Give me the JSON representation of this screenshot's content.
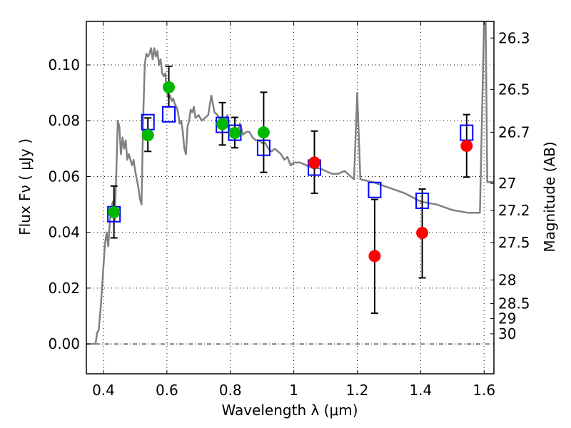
{
  "chart_data": {
    "type": "scatter",
    "title": "",
    "xlabel": "Wavelength  λ (μm)",
    "ylabel": "Flux  Fν  ( μJy )",
    "ylabel_right": "Magnitude (AB)",
    "xlim": [
      0.346,
      1.631
    ],
    "ylim": [
      -0.0107,
      0.1156
    ],
    "grid": true,
    "x_ticks": [
      {
        "value": 0.4,
        "label": "0.4"
      },
      {
        "value": 0.6,
        "label": "0.6"
      },
      {
        "value": 0.8,
        "label": "0.8"
      },
      {
        "value": 1.0,
        "label": "1"
      },
      {
        "value": 1.2,
        "label": "1.2"
      },
      {
        "value": 1.4,
        "label": "1.4"
      },
      {
        "value": 1.6,
        "label": "1.6"
      }
    ],
    "y_ticks": [
      {
        "value": 0.0,
        "label": "0.00"
      },
      {
        "value": 0.02,
        "label": "0.02"
      },
      {
        "value": 0.04,
        "label": "0.04"
      },
      {
        "value": 0.06,
        "label": "0.06"
      },
      {
        "value": 0.08,
        "label": "0.08"
      },
      {
        "value": 0.1,
        "label": "0.10"
      }
    ],
    "right_ticks": [
      {
        "mag": 26.3,
        "label": "26.3"
      },
      {
        "mag": 26.5,
        "label": "26.5"
      },
      {
        "mag": 26.7,
        "label": "26.7"
      },
      {
        "mag": 27,
        "label": "27"
      },
      {
        "mag": 27.2,
        "label": "27.2"
      },
      {
        "mag": 27.5,
        "label": "27.5"
      },
      {
        "mag": 28,
        "label": "28"
      },
      {
        "mag": 28.5,
        "label": "28.5"
      },
      {
        "mag": 29,
        "label": "29"
      },
      {
        "mag": 30,
        "label": "30"
      }
    ],
    "colors": {
      "model": "#808080",
      "model_points": "#0000ff",
      "green_obs": "#00b800",
      "red_obs": "#ff0000",
      "errorbar": "#000000"
    },
    "series": [
      {
        "name": "model_spectrum",
        "kind": "line",
        "x": [
          0.346,
          0.375,
          0.38,
          0.385,
          0.392,
          0.4,
          0.405,
          0.41,
          0.415,
          0.42,
          0.425,
          0.43,
          0.435,
          0.44,
          0.445,
          0.45,
          0.455,
          0.46,
          0.465,
          0.47,
          0.475,
          0.48,
          0.485,
          0.49,
          0.495,
          0.5,
          0.505,
          0.51,
          0.515,
          0.52,
          0.525,
          0.53,
          0.535,
          0.54,
          0.545,
          0.55,
          0.555,
          0.56,
          0.565,
          0.57,
          0.575,
          0.58,
          0.585,
          0.59,
          0.595,
          0.6,
          0.605,
          0.61,
          0.615,
          0.62,
          0.625,
          0.63,
          0.635,
          0.64,
          0.645,
          0.65,
          0.655,
          0.66,
          0.665,
          0.67,
          0.675,
          0.68,
          0.685,
          0.69,
          0.7,
          0.71,
          0.72,
          0.73,
          0.74,
          0.75,
          0.76,
          0.77,
          0.78,
          0.79,
          0.8,
          0.81,
          0.82,
          0.83,
          0.84,
          0.85,
          0.86,
          0.87,
          0.88,
          0.89,
          0.9,
          0.91,
          0.92,
          0.93,
          0.94,
          0.95,
          0.96,
          0.97,
          0.98,
          0.99,
          1.0,
          1.02,
          1.04,
          1.06,
          1.08,
          1.1,
          1.12,
          1.14,
          1.16,
          1.18,
          1.19,
          1.2,
          1.21,
          1.25,
          1.3,
          1.35,
          1.4,
          1.45,
          1.5,
          1.55,
          1.585,
          1.587,
          1.6,
          1.605,
          1.61,
          1.631
        ],
        "y": [
          0.0,
          0.0,
          0.004,
          0.005,
          0.014,
          0.028,
          0.036,
          0.04,
          0.035,
          0.044,
          0.049,
          0.051,
          0.044,
          0.06,
          0.08,
          0.078,
          0.068,
          0.074,
          0.07,
          0.073,
          0.066,
          0.068,
          0.066,
          0.064,
          0.066,
          0.062,
          0.059,
          0.056,
          0.052,
          0.05,
          0.08,
          0.1,
          0.104,
          0.103,
          0.104,
          0.106,
          0.102,
          0.106,
          0.103,
          0.105,
          0.1,
          0.102,
          0.097,
          0.096,
          0.097,
          0.09,
          0.088,
          0.089,
          0.087,
          0.088,
          0.086,
          0.085,
          0.083,
          0.079,
          0.08,
          0.076,
          0.07,
          0.068,
          0.078,
          0.08,
          0.084,
          0.083,
          0.085,
          0.081,
          0.082,
          0.08,
          0.081,
          0.082,
          0.089,
          0.083,
          0.082,
          0.08,
          0.078,
          0.082,
          0.075,
          0.076,
          0.074,
          0.079,
          0.075,
          0.076,
          0.076,
          0.074,
          0.073,
          0.073,
          0.072,
          0.072,
          0.07,
          0.069,
          0.07,
          0.069,
          0.068,
          0.066,
          0.067,
          0.064,
          0.065,
          0.065,
          0.064,
          0.063,
          0.063,
          0.062,
          0.061,
          0.061,
          0.062,
          0.06,
          0.059,
          0.09,
          0.059,
          0.058,
          0.056,
          0.054,
          0.051,
          0.05,
          0.048,
          0.047,
          0.047,
          0.047,
          0.1156,
          0.1156,
          0.058,
          0.058
        ]
      },
      {
        "name": "model_bandpass",
        "kind": "open-square",
        "x": [
          0.433,
          0.54,
          0.606,
          0.775,
          0.814,
          0.905,
          1.065,
          1.255,
          1.405,
          1.545
        ],
        "y": [
          0.0465,
          0.0795,
          0.0823,
          0.0785,
          0.0757,
          0.0703,
          0.0632,
          0.0552,
          0.0513,
          0.0757
        ]
      },
      {
        "name": "observed_optical",
        "kind": "filled-circle",
        "x": [
          0.433,
          0.54,
          0.606,
          0.775,
          0.814,
          0.905
        ],
        "y": [
          0.0472,
          0.0748,
          0.092,
          0.0788,
          0.0756,
          0.0758
        ],
        "yerr_low": [
          0.038,
          0.069,
          0.085,
          0.0713,
          0.0703,
          0.0615
        ],
        "yerr_high": [
          0.0566,
          0.081,
          0.0995,
          0.0865,
          0.0812,
          0.0902
        ]
      },
      {
        "name": "observed_nir",
        "kind": "filled-circle",
        "x": [
          1.065,
          1.255,
          1.405,
          1.545
        ],
        "y": [
          0.065,
          0.0315,
          0.0398,
          0.071
        ],
        "yerr_low": [
          0.054,
          0.011,
          0.0237,
          0.0598
        ],
        "yerr_high": [
          0.0763,
          0.0518,
          0.0555,
          0.0822
        ]
      }
    ]
  }
}
